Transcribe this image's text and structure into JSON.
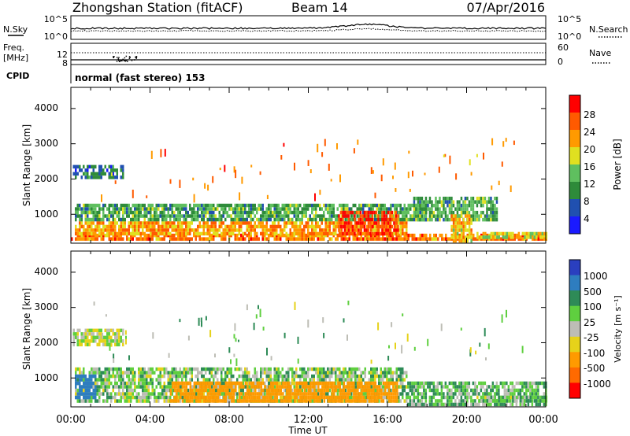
{
  "header": {
    "title": "Zhongshan Station (fitACF)",
    "beam": "Beam 14",
    "date": "07/Apr/2016"
  },
  "strip": {
    "left_labels": {
      "nsky": "N.Sky",
      "freq": "Freq.",
      "mhz": "[MHz]",
      "cpid": "CPID"
    },
    "right_labels": {
      "nsearch": "N.Search",
      "nave": "Nave"
    },
    "noise_ticks_left": [
      "10^5",
      "10^0"
    ],
    "noise_ticks_right": [
      "10^5",
      "10^0"
    ],
    "freq_ticks_left": [
      "12",
      "8"
    ],
    "freq_ticks_right": [
      "60",
      "0"
    ],
    "cpid_text": "normal (fast stereo) 153"
  },
  "axes": {
    "ylabel": "Slant Range [km]",
    "xlabel": "Time UT",
    "yticks": [
      "4000",
      "3000",
      "2000",
      "1000"
    ],
    "xticks": [
      "00:00",
      "04:00",
      "08:00",
      "12:00",
      "16:00",
      "20:00",
      "00:00"
    ]
  },
  "colorbars": {
    "power": {
      "label": "Power [dB]",
      "ticks": [
        "28",
        "24",
        "20",
        "16",
        "12",
        "8",
        "4"
      ],
      "colors": [
        "#1a1aff",
        "#2050b0",
        "#2e8b3a",
        "#5fbf5f",
        "#e0e020",
        "#ff9a00",
        "#ff5a00",
        "#ff0000"
      ]
    },
    "velocity": {
      "label": "Velocity [m s⁻¹]",
      "ticks": [
        "1000",
        "500",
        "100",
        "25",
        "-25",
        "-100",
        "-500",
        "-1000"
      ],
      "colors": [
        "#2a3fbf",
        "#2e7dbf",
        "#2e8b57",
        "#5fcf3f",
        "#bdbdb5",
        "#e6d21a",
        "#ff9a00",
        "#ff6a00",
        "#ff0000"
      ]
    }
  },
  "chart_data": [
    {
      "type": "heatmap",
      "title": "Zhongshan Station (fitACF) Beam 14 07/Apr/2016",
      "xlabel": "Time UT",
      "ylabel": "Slant Range [km]",
      "xlim": [
        "00:00",
        "24:00"
      ],
      "ylim": [
        180,
        4600
      ],
      "colorbar": "Power [dB]",
      "color_range": [
        0,
        32
      ],
      "regions": [
        {
          "t0": 0.0,
          "t1": 24.0,
          "r0": 250,
          "r1": 450,
          "value": 24
        },
        {
          "t0": 0.2,
          "t1": 17.0,
          "r0": 450,
          "r1": 800,
          "value": 22
        },
        {
          "t0": 0.2,
          "t1": 18.0,
          "r0": 800,
          "r1": 1300,
          "value": 12
        },
        {
          "t0": 13.5,
          "t1": 16.5,
          "r0": 400,
          "r1": 1100,
          "value": 28
        },
        {
          "t0": 0.1,
          "t1": 2.6,
          "r0": 2000,
          "r1": 2400,
          "value": 8
        },
        {
          "t0": 17.3,
          "t1": 21.5,
          "r0": 800,
          "r1": 1500,
          "value": 12
        },
        {
          "t0": 19.2,
          "t1": 20.2,
          "r0": 250,
          "r1": 1000,
          "value": 20
        },
        {
          "t0": 20.5,
          "t1": 24.0,
          "r0": 300,
          "r1": 500,
          "value": 18
        }
      ]
    },
    {
      "type": "heatmap",
      "title": "",
      "xlabel": "Time UT",
      "ylabel": "Slant Range [km]",
      "xlim": [
        "00:00",
        "24:00"
      ],
      "ylim": [
        180,
        4600
      ],
      "colorbar": "Velocity [m s⁻¹]",
      "color_levels": [
        1000,
        500,
        100,
        25,
        -25,
        -100,
        -500,
        -1000
      ],
      "regions": [
        {
          "t0": 0.2,
          "t1": 17.0,
          "r0": 300,
          "r1": 1300,
          "value": 50
        },
        {
          "t0": 0.2,
          "t1": 1.2,
          "r0": 450,
          "r1": 1100,
          "value": 700
        },
        {
          "t0": 5.0,
          "t1": 16.5,
          "r0": 300,
          "r1": 900,
          "value": -300
        },
        {
          "t0": 0.1,
          "t1": 2.6,
          "r0": 1950,
          "r1": 2400,
          "value": 0
        },
        {
          "t0": 17.0,
          "t1": 24.0,
          "r0": 250,
          "r1": 900,
          "value": 80
        },
        {
          "t0": 20.5,
          "t1": 24.0,
          "r0": 300,
          "r1": 500,
          "value": 60
        }
      ]
    }
  ]
}
